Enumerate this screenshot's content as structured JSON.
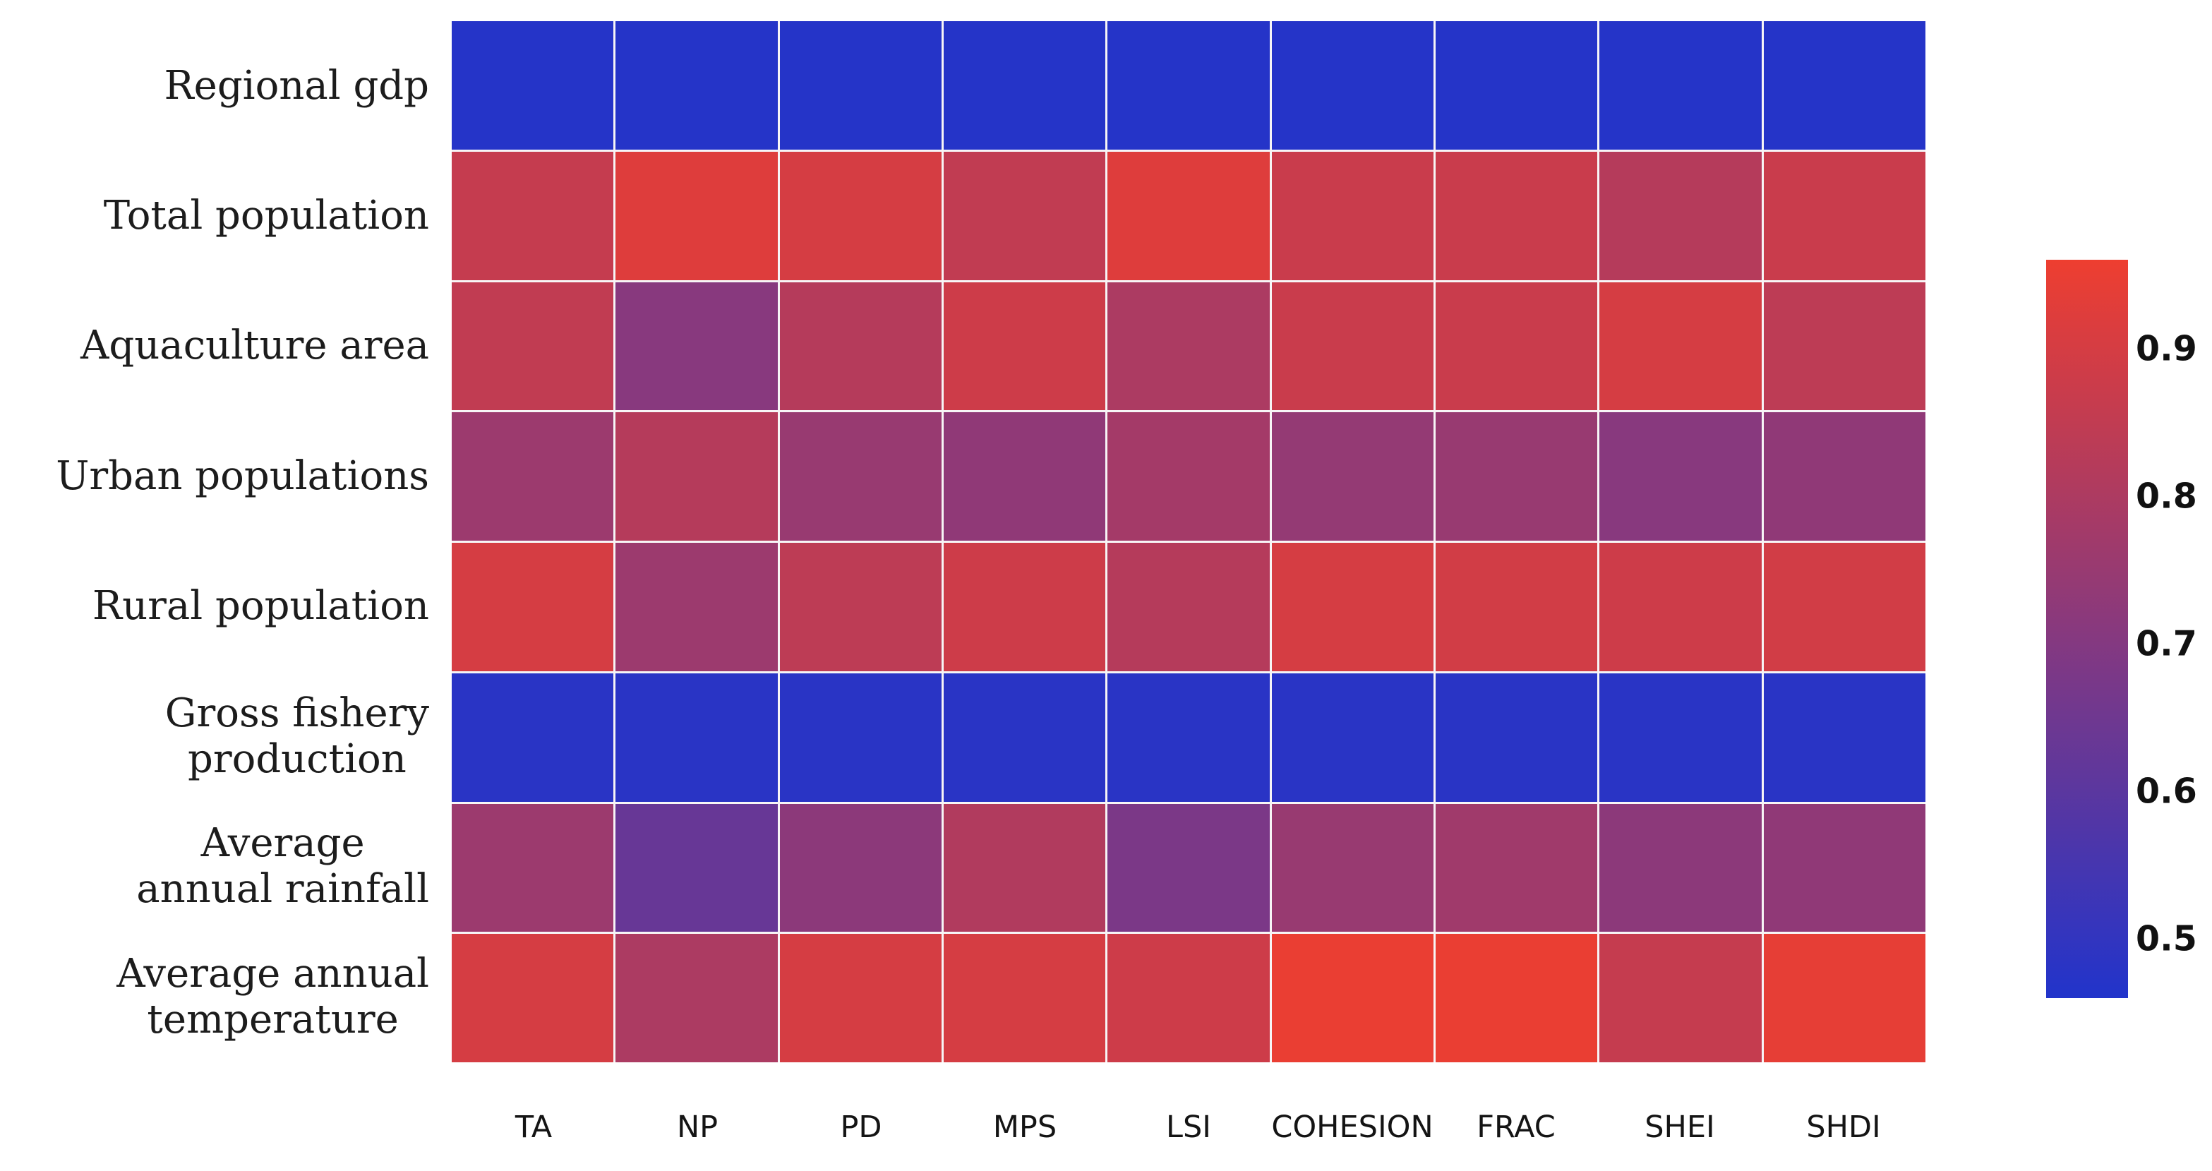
{
  "chart_data": {
    "type": "heatmap",
    "title": "",
    "xlabel": "",
    "ylabel": "",
    "rows": [
      "Regional gdp",
      "Total population",
      "Aquaculture area",
      "Urban populations",
      "Rural population",
      "Gross fishery\nproduction",
      "Average\nannual rainfall",
      "Average annual\ntemperature"
    ],
    "columns": [
      "TA",
      "NP",
      "PD",
      "MPS",
      "LSI",
      "COHESION",
      "FRAC",
      "SHEI",
      "SHDI"
    ],
    "values": [
      [
        0.47,
        0.47,
        0.47,
        0.47,
        0.47,
        0.47,
        0.47,
        0.47,
        0.47
      ],
      [
        0.86,
        0.92,
        0.9,
        0.85,
        0.92,
        0.87,
        0.87,
        0.82,
        0.87
      ],
      [
        0.85,
        0.71,
        0.82,
        0.88,
        0.8,
        0.87,
        0.87,
        0.9,
        0.84
      ],
      [
        0.76,
        0.82,
        0.75,
        0.73,
        0.78,
        0.74,
        0.75,
        0.71,
        0.73
      ],
      [
        0.9,
        0.76,
        0.84,
        0.88,
        0.82,
        0.9,
        0.89,
        0.88,
        0.89
      ],
      [
        0.48,
        0.48,
        0.48,
        0.48,
        0.48,
        0.48,
        0.48,
        0.48,
        0.48
      ],
      [
        0.76,
        0.63,
        0.72,
        0.81,
        0.68,
        0.75,
        0.77,
        0.72,
        0.73
      ],
      [
        0.9,
        0.8,
        0.9,
        0.9,
        0.88,
        0.95,
        0.95,
        0.86,
        0.94
      ]
    ],
    "colorbar": {
      "position": "right",
      "vmin": 0.46,
      "vmax": 0.96,
      "color_low": "#2134cb",
      "color_high": "#ee3e30",
      "ticks": [
        0.9,
        0.8,
        0.7,
        0.6,
        0.5
      ],
      "tick_labels": [
        "0.9",
        "0.8",
        "0.7",
        "0.6",
        "0.5"
      ]
    },
    "grid_line_color": "#f7f5f6",
    "background": "#ffffff"
  }
}
